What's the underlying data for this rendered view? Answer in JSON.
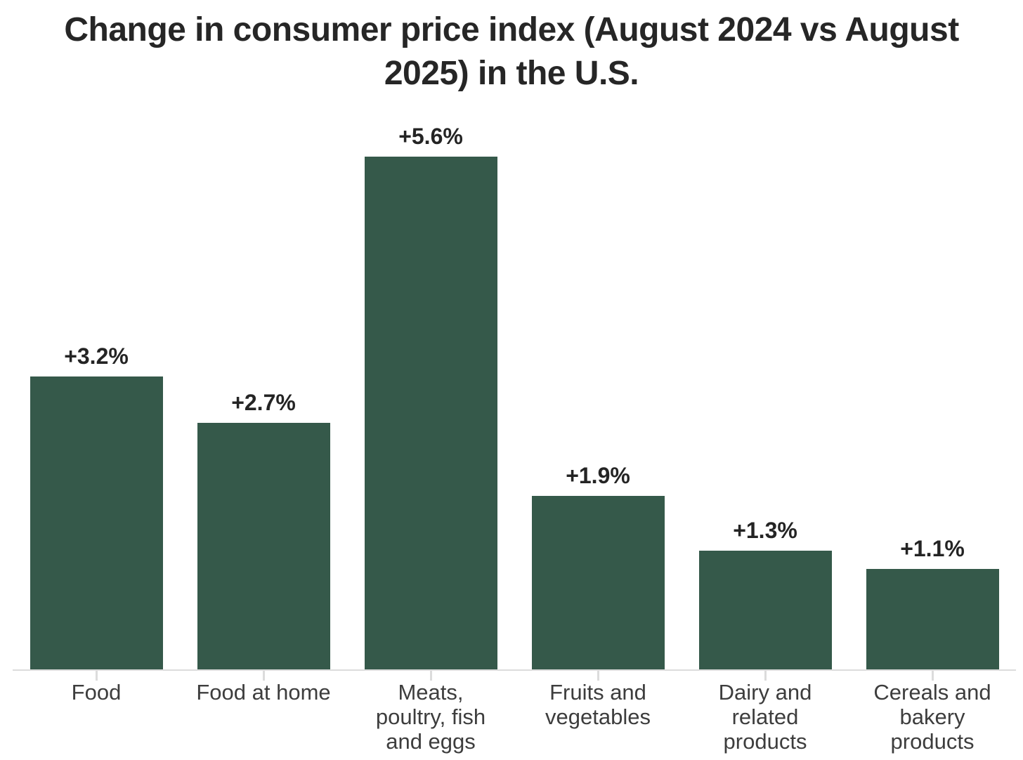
{
  "title": {
    "lines": [
      "Change in consumer price index (August 2024 vs August",
      "2025) in the U.S."
    ]
  },
  "chart_data": {
    "type": "bar",
    "title": "Change in consumer price index (August 2024 vs August 2025) in the U.S.",
    "categories": [
      "Food",
      "Food at home",
      "Meats, poultry, fish and eggs",
      "Fruits and vegetables",
      "Dairy and related products",
      "Cereals and bakery products"
    ],
    "category_lines": [
      "Food",
      "Food at home",
      "Meats,\npoultry, fish\nand eggs",
      "Fruits and\nvegetables",
      "Dairy and\nrelated\nproducts",
      "Cereals and\nbakery\nproducts"
    ],
    "values": [
      3.2,
      2.7,
      5.6,
      1.9,
      1.3,
      1.1
    ],
    "value_labels": [
      "+3.2%",
      "+2.7%",
      "+5.6%",
      "+1.9%",
      "+1.3%",
      "+1.1%"
    ],
    "unit": "%",
    "ylim": [
      0,
      6
    ],
    "grid": false,
    "legend": false,
    "bar_color": "#35594a",
    "axis_color": "#dcdcdc",
    "title_color": "#262626",
    "label_color": "#242424",
    "tick_label_color": "#3d3d3d"
  }
}
